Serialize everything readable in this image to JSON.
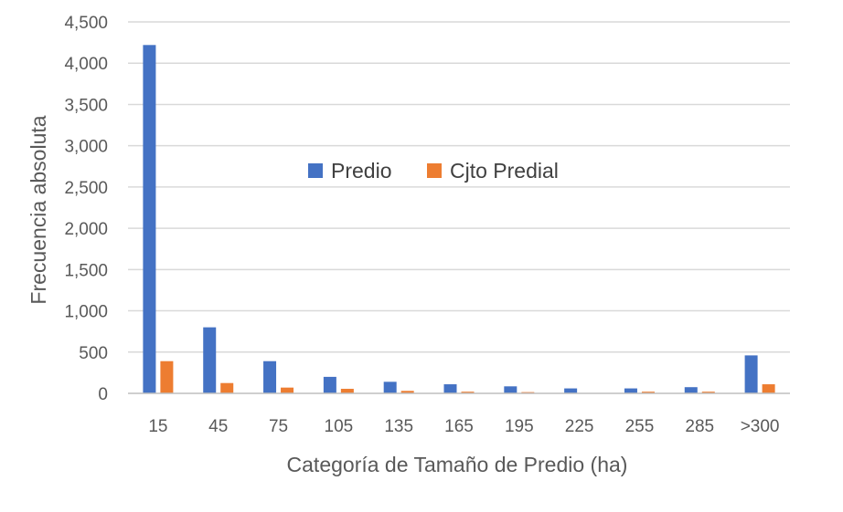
{
  "chart_data": {
    "type": "bar",
    "xlabel": "Categoría de Tamaño de Predio (ha)",
    "ylabel": "Frecuencia absoluta",
    "categories": [
      "15",
      "45",
      "75",
      "105",
      "135",
      "165",
      "195",
      "225",
      "255",
      "285",
      ">300"
    ],
    "ylim": [
      0,
      4500
    ],
    "yticks": [
      "0",
      "500",
      "1,000",
      "1,500",
      "2,000",
      "2,500",
      "3,000",
      "3,500",
      "4,000",
      "4,500"
    ],
    "grid": true,
    "legend_position": "inside-top-center",
    "series": [
      {
        "name": "Predio",
        "color": "#4472c4",
        "values": [
          4220,
          800,
          390,
          200,
          140,
          110,
          85,
          60,
          60,
          75,
          460
        ]
      },
      {
        "name": "Cjto Predial",
        "color": "#ed7d31",
        "values": [
          390,
          125,
          70,
          55,
          30,
          20,
          15,
          5,
          20,
          20,
          110
        ]
      }
    ]
  }
}
